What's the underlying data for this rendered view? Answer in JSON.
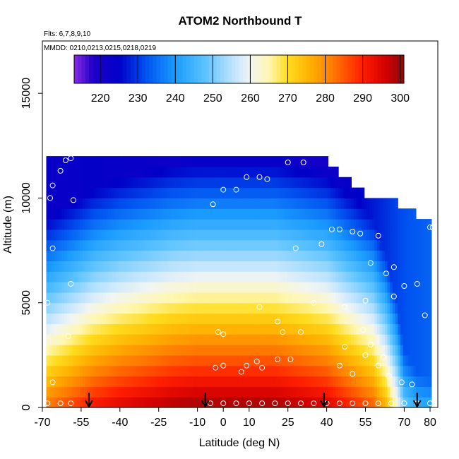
{
  "chart_data": {
    "type": "heatmap",
    "title": "ATOM2 Northbound T",
    "subtitle_flights": "Flts: 6,7,8,9,10",
    "subtitle_dates": "MMDD: 0210,0213,0215,0218,0219",
    "xlabel": "Latitude (deg N)",
    "ylabel": "Altitude (m)",
    "xlim": [
      -70,
      83
    ],
    "ylim": [
      0,
      17500
    ],
    "x_ticks": [
      -70,
      -55,
      -40,
      -25,
      -10,
      0,
      10,
      25,
      40,
      55,
      70,
      80
    ],
    "y_ticks": [
      0,
      5000,
      10000,
      15000
    ],
    "colorbar": {
      "min": 213,
      "max": 301,
      "ticks": [
        220,
        230,
        240,
        250,
        260,
        270,
        280,
        290,
        300
      ],
      "stops": [
        {
          "v": 213,
          "color": "#8a2be2"
        },
        {
          "v": 218,
          "color": "#1f00c8"
        },
        {
          "v": 225,
          "color": "#0000c8"
        },
        {
          "v": 232,
          "color": "#0050f0"
        },
        {
          "v": 240,
          "color": "#1a9cff"
        },
        {
          "v": 248,
          "color": "#5cc3ff"
        },
        {
          "v": 256,
          "color": "#c4e6ff"
        },
        {
          "v": 260,
          "color": "#f2f5f2"
        },
        {
          "v": 265,
          "color": "#fff7b0"
        },
        {
          "v": 270,
          "color": "#ffdc1e"
        },
        {
          "v": 276,
          "color": "#ffb000"
        },
        {
          "v": 282,
          "color": "#ff7a00"
        },
        {
          "v": 290,
          "color": "#ff1e00"
        },
        {
          "v": 296,
          "color": "#d40000"
        },
        {
          "v": 301,
          "color": "#8c0a0a"
        }
      ]
    },
    "profile": {
      "surface_temperature_by_latitude": [
        [
          -68,
          283
        ],
        [
          -60,
          287
        ],
        [
          -50,
          292
        ],
        [
          -40,
          295
        ],
        [
          -30,
          297
        ],
        [
          -20,
          299
        ],
        [
          -10,
          300
        ],
        [
          0,
          300
        ],
        [
          10,
          300
        ],
        [
          20,
          300
        ],
        [
          30,
          298
        ],
        [
          40,
          296
        ],
        [
          50,
          290
        ],
        [
          58,
          285
        ],
        [
          63,
          276
        ],
        [
          67,
          264
        ],
        [
          70,
          250
        ],
        [
          75,
          244
        ],
        [
          80,
          243
        ]
      ],
      "tropopause_temperature_by_latitude": [
        [
          -68,
          223
        ],
        [
          -50,
          224
        ],
        [
          -30,
          223
        ],
        [
          -10,
          221
        ],
        [
          10,
          220
        ],
        [
          30,
          219
        ],
        [
          50,
          224
        ],
        [
          60,
          228
        ],
        [
          70,
          232
        ],
        [
          80,
          234
        ]
      ],
      "lapse_rate_k_per_km": 6.5
    },
    "top_altitude_by_latitude": [
      [
        -68,
        12000
      ],
      [
        -67,
        12000
      ],
      [
        -66,
        12000
      ],
      [
        -65,
        12000
      ],
      [
        -64,
        12000
      ],
      [
        -63,
        12000
      ],
      [
        -62,
        12000
      ],
      [
        -61,
        12000
      ],
      [
        -60,
        12000
      ],
      [
        -59,
        12000
      ],
      [
        -58,
        12000
      ],
      [
        -57,
        12000
      ],
      [
        -56,
        12000
      ],
      [
        -55,
        12000
      ],
      [
        -54,
        12000
      ],
      [
        -53,
        12000
      ],
      [
        -52,
        12000
      ],
      [
        -51,
        12000
      ],
      [
        -50,
        12000
      ],
      [
        -49,
        12000
      ],
      [
        -48,
        12000
      ],
      [
        -47,
        12000
      ],
      [
        -46,
        12000
      ],
      [
        -45,
        12000
      ],
      [
        -44,
        12000
      ],
      [
        -43,
        12000
      ],
      [
        -42,
        12000
      ],
      [
        -41,
        12000
      ],
      [
        -40,
        12000
      ],
      [
        -39,
        12000
      ],
      [
        -38,
        12000
      ],
      [
        -37,
        12000
      ],
      [
        -36,
        12000
      ],
      [
        -35,
        12000
      ],
      [
        -34,
        12000
      ],
      [
        -33,
        12000
      ],
      [
        -32,
        12000
      ],
      [
        -31,
        12000
      ],
      [
        -30,
        12000
      ],
      [
        -29,
        12000
      ],
      [
        -28,
        12000
      ],
      [
        -27,
        12000
      ],
      [
        -26,
        12000
      ],
      [
        -25,
        12000
      ],
      [
        -24,
        12000
      ],
      [
        -23,
        12000
      ],
      [
        -22,
        12000
      ],
      [
        -21,
        12000
      ],
      [
        -20,
        12000
      ],
      [
        -19,
        12000
      ],
      [
        -18,
        12000
      ],
      [
        -17,
        12000
      ],
      [
        -16,
        12000
      ],
      [
        -15,
        12000
      ],
      [
        -14,
        12000
      ],
      [
        -13,
        12000
      ],
      [
        -12,
        12000
      ],
      [
        -11,
        12000
      ],
      [
        -10,
        12000
      ],
      [
        -9,
        12000
      ],
      [
        -8,
        12000
      ],
      [
        -7,
        12000
      ],
      [
        -6,
        12000
      ],
      [
        -5,
        12000
      ],
      [
        -4,
        12000
      ],
      [
        -3,
        12000
      ],
      [
        -2,
        12000
      ],
      [
        -1,
        12000
      ],
      [
        0,
        12000
      ],
      [
        1,
        12000
      ],
      [
        2,
        12000
      ],
      [
        3,
        12000
      ],
      [
        4,
        12000
      ],
      [
        5,
        12000
      ],
      [
        6,
        12000
      ],
      [
        7,
        12000
      ],
      [
        8,
        12000
      ],
      [
        9,
        12000
      ],
      [
        10,
        12000
      ],
      [
        11,
        12000
      ],
      [
        12,
        12000
      ],
      [
        13,
        12000
      ],
      [
        14,
        12000
      ],
      [
        15,
        12000
      ],
      [
        16,
        12000
      ],
      [
        17,
        12000
      ],
      [
        18,
        12000
      ],
      [
        19,
        12000
      ],
      [
        20,
        12000
      ],
      [
        21,
        12000
      ],
      [
        22,
        12000
      ],
      [
        23,
        12000
      ],
      [
        24,
        12000
      ],
      [
        25,
        12000
      ],
      [
        26,
        12000
      ],
      [
        27,
        12000
      ],
      [
        28,
        12000
      ],
      [
        29,
        12000
      ],
      [
        30,
        12000
      ],
      [
        31,
        12000
      ],
      [
        32,
        12000
      ],
      [
        33,
        12000
      ],
      [
        34,
        12000
      ],
      [
        35,
        12000
      ],
      [
        36,
        12000
      ],
      [
        37,
        12000
      ],
      [
        38,
        12000
      ],
      [
        39,
        12000
      ],
      [
        40,
        12000
      ],
      [
        41,
        11500
      ],
      [
        42,
        11500
      ],
      [
        43,
        11500
      ],
      [
        44,
        11500
      ],
      [
        45,
        11000
      ],
      [
        46,
        11000
      ],
      [
        47,
        11000
      ],
      [
        48,
        11000
      ],
      [
        49,
        11000
      ],
      [
        50,
        10500
      ],
      [
        51,
        10500
      ],
      [
        52,
        10500
      ],
      [
        53,
        10500
      ],
      [
        54,
        10500
      ],
      [
        55,
        10000
      ],
      [
        56,
        10000
      ],
      [
        57,
        10000
      ],
      [
        58,
        10000
      ],
      [
        59,
        10000
      ],
      [
        60,
        10000
      ],
      [
        61,
        10000
      ],
      [
        62,
        10000
      ],
      [
        63,
        10000
      ],
      [
        64,
        10000
      ],
      [
        65,
        10000
      ],
      [
        66,
        10000
      ],
      [
        67,
        10000
      ],
      [
        68,
        9500
      ],
      [
        69,
        9500
      ],
      [
        70,
        9500
      ],
      [
        71,
        9500
      ],
      [
        72,
        9500
      ],
      [
        73,
        9500
      ],
      [
        74,
        9500
      ],
      [
        75,
        9000
      ],
      [
        76,
        9000
      ],
      [
        77,
        9000
      ],
      [
        78,
        9000
      ],
      [
        79,
        9000
      ],
      [
        80,
        9000
      ]
    ],
    "points": [
      [
        -67,
        10000
      ],
      [
        -66,
        10600
      ],
      [
        -63,
        11300
      ],
      [
        -61,
        11800
      ],
      [
        -59,
        11900
      ],
      [
        -58,
        9900
      ],
      [
        -66,
        7600
      ],
      [
        -59,
        5900
      ],
      [
        -68,
        5000
      ],
      [
        -60,
        3400
      ],
      [
        -66,
        1200
      ],
      [
        -68,
        200
      ],
      [
        -63,
        200
      ],
      [
        -59,
        200
      ],
      [
        -4,
        9700
      ],
      [
        0,
        10400
      ],
      [
        5,
        10400
      ],
      [
        9,
        11000
      ],
      [
        14,
        11000
      ],
      [
        17,
        10900
      ],
      [
        25,
        11700
      ],
      [
        31,
        11700
      ],
      [
        28,
        7600
      ],
      [
        38,
        7800
      ],
      [
        42,
        8500
      ],
      [
        45,
        8500
      ],
      [
        50,
        8400
      ],
      [
        53,
        8300
      ],
      [
        60,
        8200
      ],
      [
        57,
        6900
      ],
      [
        63,
        6400
      ],
      [
        66,
        6700
      ],
      [
        70,
        5800
      ],
      [
        75,
        5900
      ],
      [
        66,
        5300
      ],
      [
        55,
        5100
      ],
      [
        47,
        4800
      ],
      [
        35,
        5000
      ],
      [
        21,
        4100
      ],
      [
        14,
        4800
      ],
      [
        23,
        3600
      ],
      [
        -2,
        3600
      ],
      [
        0,
        3500
      ],
      [
        30,
        3600
      ],
      [
        54,
        3700
      ],
      [
        55,
        2500
      ],
      [
        57,
        3000
      ],
      [
        60,
        2000
      ],
      [
        62,
        2400
      ],
      [
        47,
        2900
      ],
      [
        45,
        2000
      ],
      [
        50,
        1600
      ],
      [
        64,
        1500
      ],
      [
        69,
        1200
      ],
      [
        73,
        1100
      ],
      [
        -3,
        1900
      ],
      [
        0,
        2000
      ],
      [
        7,
        1700
      ],
      [
        9,
        2000
      ],
      [
        13,
        2200
      ],
      [
        15,
        1900
      ],
      [
        21,
        2300
      ],
      [
        26,
        2300
      ],
      [
        78,
        4400
      ],
      [
        81,
        8600
      ],
      [
        80,
        8600
      ],
      [
        5,
        200
      ],
      [
        0,
        200
      ],
      [
        -5,
        200
      ],
      [
        10,
        200
      ],
      [
        15,
        200
      ],
      [
        20,
        200
      ],
      [
        25,
        200
      ],
      [
        30,
        200
      ],
      [
        35,
        200
      ],
      [
        40,
        200
      ],
      [
        45,
        200
      ],
      [
        50,
        200
      ],
      [
        55,
        200
      ],
      [
        60,
        200
      ],
      [
        65,
        200
      ],
      [
        70,
        200
      ],
      [
        75,
        200
      ],
      [
        80,
        200
      ]
    ],
    "arrows_latitude": [
      -52,
      -7,
      39,
      75
    ]
  }
}
